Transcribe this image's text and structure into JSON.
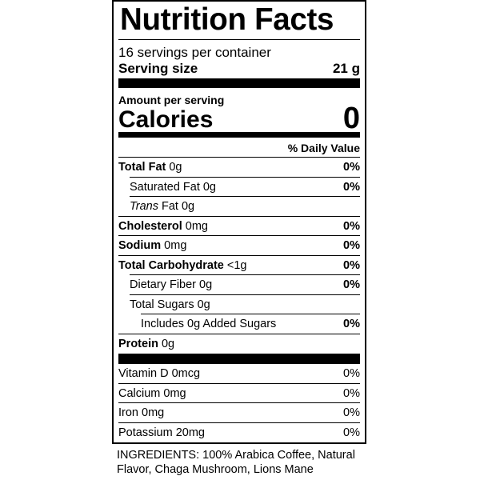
{
  "title": "Nutrition Facts",
  "servings": "16 servings per container",
  "serving_size": {
    "label": "Serving size",
    "value": "21 g"
  },
  "amount_per_serving": "Amount per serving",
  "calories": {
    "label": "Calories",
    "value": "0"
  },
  "daily_value_header": "% Daily Value",
  "nutrients": [
    {
      "name": "Total Fat",
      "amount": "0g",
      "dv": "0%",
      "level": 0
    },
    {
      "name": "Saturated Fat",
      "amount": "0g",
      "dv": "0%",
      "level": 1
    },
    {
      "italic": "Trans",
      "name": "Fat",
      "amount": "0g",
      "level": 1
    },
    {
      "name": "Cholesterol",
      "amount": "0mg",
      "dv": "0%",
      "level": 0
    },
    {
      "name": "Sodium",
      "amount": "0mg",
      "dv": "0%",
      "level": 0
    },
    {
      "name": "Total Carbohydrate",
      "amount": "<1g",
      "dv": "0%",
      "level": 0
    },
    {
      "name": "Dietary Fiber",
      "amount": "0g",
      "dv": "0%",
      "level": 1
    },
    {
      "name": "Total Sugars",
      "amount": "0g",
      "level": 1
    },
    {
      "name": "Includes 0g Added Sugars",
      "dv": "0%",
      "level": 2
    },
    {
      "name": "Protein",
      "amount": "0g",
      "level": 0
    }
  ],
  "vitamins": [
    {
      "name": "Vitamin D 0mcg",
      "dv": "0%"
    },
    {
      "name": "Calcium 0mg",
      "dv": "0%"
    },
    {
      "name": "Iron 0mg",
      "dv": "0%"
    },
    {
      "name": "Potassium 20mg",
      "dv": "0%"
    }
  ],
  "ingredients": "INGREDIENTS: 100% Arabica Coffee, Natural Flavor, Chaga Mushroom, Lions Mane"
}
